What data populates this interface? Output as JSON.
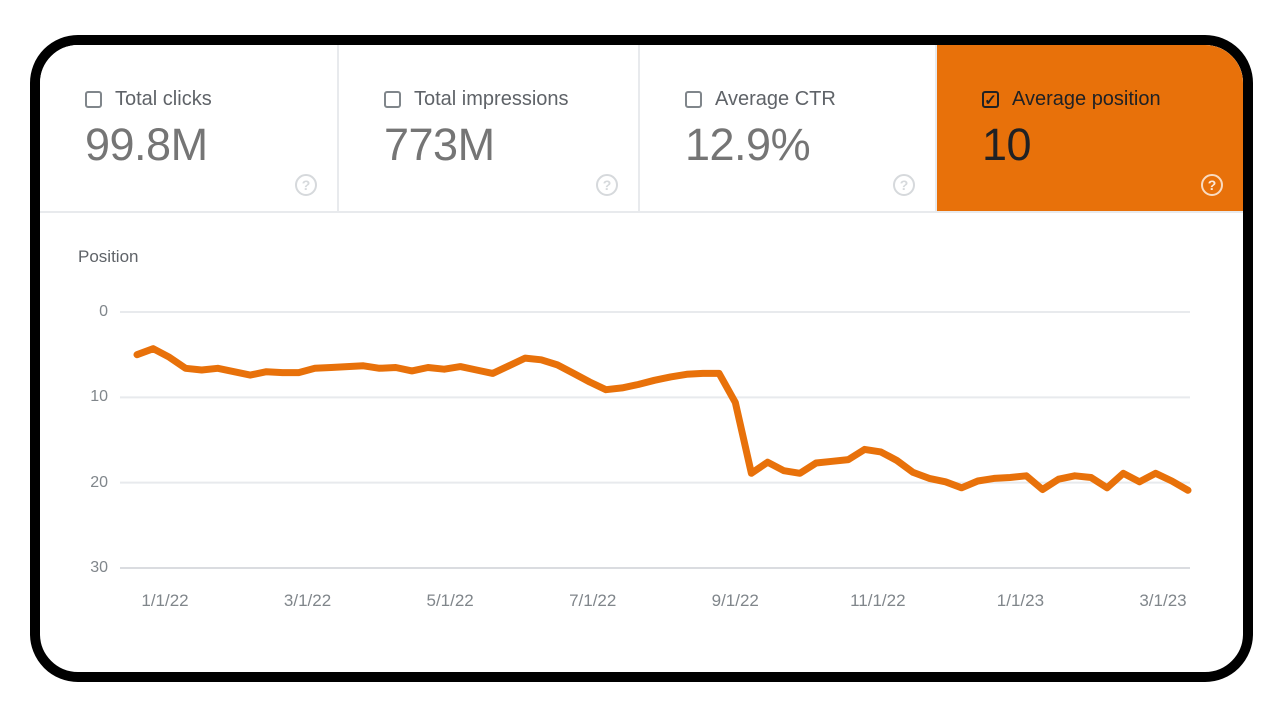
{
  "icons": {
    "check": "✓",
    "help": "?"
  },
  "colors": {
    "accent_orange": "#e8710a",
    "selected_card_text": "#202124",
    "metric_value_gray": "#757575",
    "metric_label_gray": "#5f6368",
    "axis_tick_gray": "#80868b",
    "gridline": "#e8eaed",
    "gridline_bottom": "#dadce0",
    "frame_border": "#000000"
  },
  "cards": [
    {
      "label": "Total clicks",
      "value": "99.8M",
      "checked": false
    },
    {
      "label": "Total impressions",
      "value": "773M",
      "checked": false
    },
    {
      "label": "Average CTR",
      "value": "12.9%",
      "checked": false
    },
    {
      "label": "Average position",
      "value": "10",
      "checked": true
    }
  ],
  "chart_data": {
    "type": "line",
    "title": "Position",
    "xlabel": "",
    "ylabel": "Position",
    "y_axis": {
      "ticks": [
        0,
        10,
        20,
        30
      ],
      "min": 0,
      "max": 30,
      "inverted": true
    },
    "x_axis": {
      "tick_labels": [
        "1/1/22",
        "3/1/22",
        "5/1/22",
        "7/1/22",
        "9/1/22",
        "11/1/22",
        "1/1/23",
        "3/1/23"
      ],
      "cadence": "weekly points, mid-Dec 2021 through mid-Mar 2023"
    },
    "grid": "horizontal",
    "legend": "none",
    "series": [
      {
        "name": "Average position",
        "color": "#e8710a",
        "values": [
          5.0,
          4.3,
          5.3,
          6.6,
          6.8,
          6.6,
          7.0,
          7.4,
          7.0,
          7.1,
          7.1,
          6.6,
          6.5,
          6.4,
          6.3,
          6.6,
          6.5,
          6.9,
          6.5,
          6.7,
          6.4,
          6.8,
          7.2,
          6.3,
          5.4,
          5.6,
          6.2,
          7.2,
          8.2,
          9.1,
          8.9,
          8.5,
          8.0,
          7.6,
          7.3,
          7.2,
          7.2,
          10.6,
          18.9,
          17.6,
          18.6,
          18.9,
          17.7,
          17.5,
          17.3,
          16.1,
          16.4,
          17.4,
          18.8,
          19.5,
          19.9,
          20.6,
          19.8,
          19.5,
          19.4,
          19.2,
          20.8,
          19.6,
          19.2,
          19.4,
          20.6,
          18.9,
          19.9,
          18.9,
          19.8,
          20.9
        ]
      }
    ]
  }
}
